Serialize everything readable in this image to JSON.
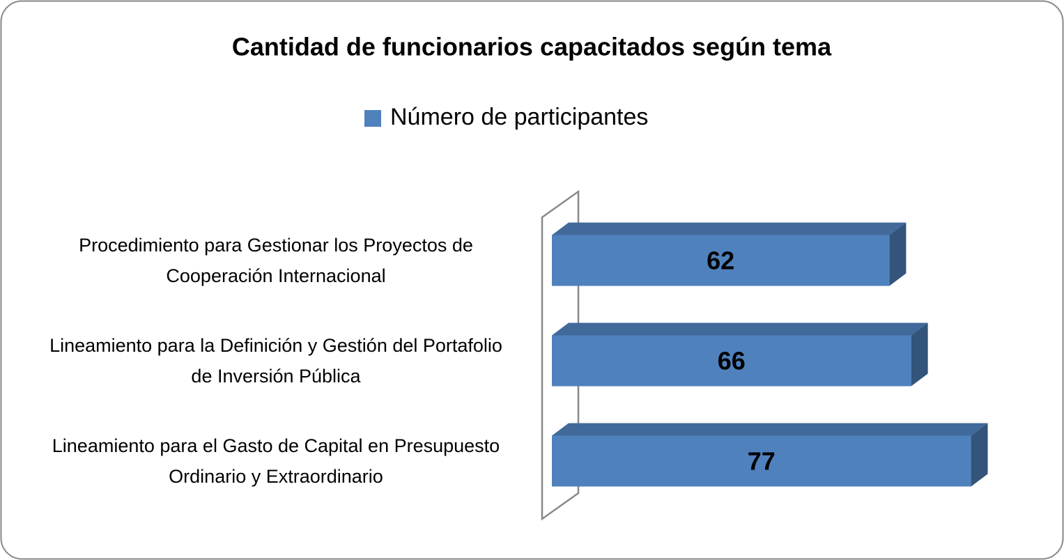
{
  "chart_data": {
    "type": "bar",
    "title": "Cantidad de funcionarios capacitados según tema",
    "categories": [
      "Procedimiento para Gestionar los Proyectos de Cooperación Internacional",
      "Lineamiento para la Definición y Gestión del Portafolio de Inversión Pública",
      "Lineamiento para el Gasto de Capital en Presupuesto Ordinario y Extraordinario"
    ],
    "series": [
      {
        "name": "Número de participantes",
        "color": "#4f81bd",
        "values": [
          62,
          66,
          77
        ]
      }
    ],
    "xlim": [
      0,
      80
    ]
  }
}
